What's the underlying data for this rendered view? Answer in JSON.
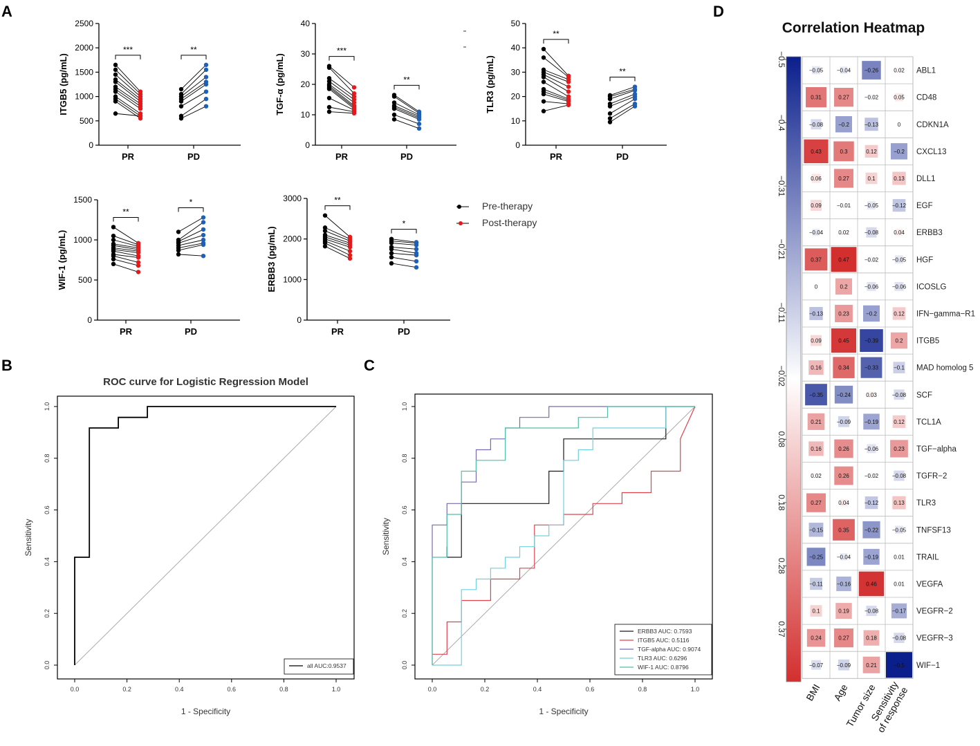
{
  "panel_labels": {
    "a": "A",
    "b": "B",
    "c": "C",
    "d": "D"
  },
  "legend": {
    "pre": {
      "label": "Pre-therapy",
      "color": "#000000"
    },
    "post": {
      "label": "Post-therapy",
      "color": "#e31a1c"
    },
    "pd_post_color": "#1f5fb4"
  },
  "chart_data": [
    {
      "id": "itgb5",
      "type": "paired-dot",
      "title": "",
      "ylabel": "ITGB5 (pg/mL)",
      "ylim": [
        0,
        2500
      ],
      "yticks": [
        0,
        500,
        1000,
        1500,
        2000,
        2500
      ],
      "groups": [
        {
          "name": "PR",
          "sig": "***",
          "pre": [
            1650,
            1550,
            1450,
            1350,
            1300,
            1200,
            1150,
            1100,
            1000,
            950,
            900,
            650
          ],
          "post": [
            1100,
            1050,
            1000,
            950,
            900,
            850,
            800,
            750,
            650,
            600,
            550,
            600
          ]
        },
        {
          "name": "PD",
          "sig": "**",
          "pre": [
            1150,
            1050,
            1000,
            950,
            900,
            800,
            600,
            550
          ],
          "post": [
            1650,
            1550,
            1400,
            1300,
            1250,
            1100,
            950,
            800
          ]
        }
      ]
    },
    {
      "id": "tgfa",
      "type": "paired-dot",
      "title": "",
      "ylabel": "TGF-α (pg/mL)",
      "ylim": [
        0,
        40
      ],
      "yticks": [
        0,
        10,
        20,
        30,
        40
      ],
      "groups": [
        {
          "name": "PR",
          "sig": "***",
          "pre": [
            26,
            25.5,
            22,
            21,
            20,
            19.5,
            19,
            18.5,
            15.5,
            12.5,
            11
          ],
          "post": [
            19,
            17,
            16,
            15,
            14,
            13,
            12.5,
            12,
            11.5,
            11,
            10.5
          ]
        },
        {
          "name": "PD",
          "sig": "**",
          "pre": [
            16.5,
            16,
            14,
            13,
            12.5,
            12,
            10,
            8.5
          ],
          "post": [
            11,
            10.5,
            10,
            9.5,
            9,
            8.5,
            7,
            5.5
          ]
        }
      ]
    },
    {
      "id": "tlr3",
      "type": "paired-dot",
      "title": "",
      "ylabel": "TLR3 (pg/mL)",
      "ylim": [
        0,
        50
      ],
      "yticks": [
        0,
        10,
        20,
        30,
        40,
        50
      ],
      "groups": [
        {
          "name": "PR",
          "sig": "**",
          "pre": [
            39.5,
            36,
            31,
            30,
            29,
            28,
            26,
            23,
            22,
            21,
            18,
            14
          ],
          "post": [
            28.5,
            28,
            27,
            26,
            24,
            22,
            20,
            19,
            18.5,
            18,
            17,
            16.5
          ]
        },
        {
          "name": "PD",
          "sig": "**",
          "pre": [
            20.5,
            20,
            19,
            17,
            16,
            13,
            11,
            9.5
          ],
          "post": [
            24,
            23,
            22.5,
            21,
            20,
            19,
            17,
            16
          ]
        }
      ]
    },
    {
      "id": "wif1",
      "type": "paired-dot",
      "title": "",
      "ylabel": "WIF-1 (pg/mL)",
      "ylim": [
        0,
        1500
      ],
      "yticks": [
        0,
        500,
        1000,
        1500
      ],
      "groups": [
        {
          "name": "PR",
          "sig": "**",
          "pre": [
            1160,
            1050,
            1000,
            950,
            930,
            900,
            880,
            860,
            820,
            800,
            760,
            700
          ],
          "post": [
            960,
            940,
            920,
            900,
            880,
            860,
            840,
            800,
            780,
            720,
            680,
            600
          ]
        },
        {
          "name": "PD",
          "sig": "*",
          "pre": [
            1100,
            1000,
            980,
            960,
            930,
            900,
            870,
            820
          ],
          "post": [
            1280,
            1220,
            1130,
            1060,
            1000,
            960,
            940,
            800
          ]
        }
      ]
    },
    {
      "id": "erbb3",
      "type": "paired-dot",
      "title": "",
      "ylabel": "ERBB3 (pg/mL)",
      "ylim": [
        0,
        3000
      ],
      "yticks": [
        0,
        1000,
        2000,
        3000
      ],
      "groups": [
        {
          "name": "PR",
          "sig": "**",
          "pre": [
            2580,
            2280,
            2200,
            2100,
            2050,
            2000,
            1950,
            1900,
            1820
          ],
          "post": [
            2050,
            2000,
            1950,
            1900,
            1850,
            1800,
            1700,
            1600,
            1520
          ]
        },
        {
          "name": "PD",
          "sig": "*",
          "pre": [
            2000,
            1950,
            1900,
            1800,
            1750,
            1650,
            1550,
            1400
          ],
          "post": [
            1920,
            1900,
            1850,
            1750,
            1650,
            1600,
            1450,
            1300
          ]
        }
      ]
    },
    {
      "id": "rocB",
      "type": "line",
      "title": "ROC curve for Logistic Regression Model",
      "xlabel": "1 - Specificity",
      "ylabel": "Sensitivity",
      "xlim": [
        0,
        1
      ],
      "ylim": [
        0,
        1
      ],
      "ticks": [
        "0.0",
        "0.2",
        "0.4",
        "0.6",
        "0.8",
        "1.0"
      ],
      "series": [
        {
          "name": "all",
          "auc_label": "all AUC:0.9537",
          "color": "#000000",
          "x": [
            0,
            0,
            0.056,
            0.056,
            0.167,
            0.167,
            0.278,
            0.278,
            1
          ],
          "y": [
            0,
            0.417,
            0.417,
            0.917,
            0.917,
            0.958,
            0.958,
            1,
            1
          ]
        }
      ]
    },
    {
      "id": "rocC",
      "type": "line",
      "title": "",
      "xlabel": "1 - Specificity",
      "ylabel": "Sensitivity",
      "xlim": [
        0,
        1
      ],
      "ylim": [
        0,
        1
      ],
      "ticks": [
        "0.0",
        "0.2",
        "0.4",
        "0.6",
        "0.8",
        "1.0"
      ],
      "series": [
        {
          "name": "ERBB3",
          "label": "ERBB3 AUC: 0.7593",
          "color": "#1a1a1a",
          "x": [
            0.056,
            0.056,
            0.111,
            0.111,
            0.444,
            0.444,
            0.5,
            0.5,
            0.889,
            0.889
          ],
          "y": [
            0.458,
            0.417,
            0.417,
            0.625,
            0.625,
            0.75,
            0.75,
            0.875,
            0.875,
            1
          ]
        },
        {
          "name": "ITGB5",
          "label": "ITGB5 AUC: 0.5116",
          "color": "#e0424e",
          "x": [
            0,
            0.056,
            0.056,
            0.111,
            0.111,
            0.222,
            0.222,
            0.333,
            0.333,
            0.389,
            0.389,
            0.5,
            0.5,
            0.611,
            0.611,
            0.722,
            0.722,
            0.833,
            0.833,
            0.944,
            0.944,
            1
          ],
          "y": [
            0.042,
            0.042,
            0.167,
            0.167,
            0.25,
            0.25,
            0.333,
            0.333,
            0.375,
            0.375,
            0.542,
            0.542,
            0.583,
            0.583,
            0.625,
            0.625,
            0.667,
            0.667,
            0.75,
            0.75,
            0.875,
            1
          ]
        },
        {
          "name": "TGF-alpha",
          "label": "TGF-alpha AUC: 0.9074",
          "color": "#7b68b0",
          "x": [
            0,
            0,
            0.056,
            0.056,
            0.111,
            0.111,
            0.167,
            0.167,
            0.222,
            0.222,
            0.278,
            0.278,
            0.333,
            0.333,
            0.444,
            0.444,
            0.667,
            0.667,
            1
          ],
          "y": [
            0,
            0.542,
            0.542,
            0.625,
            0.625,
            0.708,
            0.708,
            0.833,
            0.833,
            0.875,
            0.875,
            0.917,
            0.917,
            0.958,
            0.958,
            1,
            1,
            1,
            1
          ]
        },
        {
          "name": "TLR3",
          "label": "TLR3 AUC: 0.6296",
          "color": "#6fd0de",
          "x": [
            0,
            0.111,
            0.111,
            0.167,
            0.167,
            0.222,
            0.222,
            0.278,
            0.278,
            0.333,
            0.333,
            0.389,
            0.389,
            0.444,
            0.444,
            0.5,
            0.5,
            0.556,
            0.556,
            0.611,
            0.611,
            0.889,
            0.889,
            1
          ],
          "y": [
            0,
            0,
            0.292,
            0.292,
            0.333,
            0.333,
            0.375,
            0.375,
            0.417,
            0.417,
            0.458,
            0.458,
            0.5,
            0.5,
            0.542,
            0.542,
            0.792,
            0.792,
            0.833,
            0.833,
            0.917,
            0.917,
            1,
            1
          ]
        },
        {
          "name": "WIF-1",
          "label": "WIF-1 AUC: 0.8796",
          "color": "#4fbfa8",
          "x": [
            0,
            0,
            0.056,
            0.056,
            0.111,
            0.111,
            0.167,
            0.167,
            0.278,
            0.278,
            0.5,
            0.5,
            0.556,
            0.556,
            0.611,
            0.611,
            0.667,
            0.667,
            1
          ],
          "y": [
            0,
            0.417,
            0.417,
            0.583,
            0.583,
            0.75,
            0.75,
            0.792,
            0.792,
            0.917,
            0.917,
            0.917,
            0.917,
            0.958,
            0.958,
            0.958,
            0.958,
            1,
            1
          ]
        }
      ]
    },
    {
      "id": "heatmap",
      "type": "heatmap",
      "title": "Correlation Heatmap",
      "columns": [
        "BMI",
        "Age",
        "Tumor size",
        "Sensitivity\nof response"
      ],
      "rows": [
        "ABL1",
        "CD48",
        "CDKN1A",
        "CXCL13",
        "DLL1",
        "EGF",
        "ERBB3",
        "HGF",
        "ICOSLG",
        "IFN−gamma−R1",
        "ITGB5",
        "MAD homolog 5",
        "SCF",
        "TCL1A",
        "TGF−alpha",
        "TGFR−2",
        "TLR3",
        "TNFSF13",
        "TRAIL",
        "VEGFA",
        "VEGFR−2",
        "VEGFR−3",
        "WIF−1"
      ],
      "values": [
        [
          -0.05,
          -0.04,
          -0.26,
          0.02
        ],
        [
          0.31,
          0.27,
          -0.02,
          0.05
        ],
        [
          -0.08,
          -0.2,
          -0.13,
          0
        ],
        [
          0.43,
          0.3,
          0.12,
          -0.2
        ],
        [
          0.06,
          0.27,
          0.1,
          0.13
        ],
        [
          0.09,
          -0.01,
          -0.05,
          -0.12
        ],
        [
          -0.04,
          0.02,
          -0.08,
          0.04
        ],
        [
          0.37,
          0.47,
          -0.02,
          -0.05
        ],
        [
          0,
          0.2,
          -0.06,
          -0.06
        ],
        [
          -0.13,
          0.23,
          -0.2,
          0.12
        ],
        [
          0.09,
          0.45,
          -0.39,
          0.2
        ],
        [
          0.16,
          0.34,
          -0.33,
          -0.1
        ],
        [
          -0.35,
          -0.24,
          0.03,
          -0.08
        ],
        [
          0.21,
          -0.09,
          -0.19,
          0.12
        ],
        [
          0.16,
          0.26,
          -0.06,
          0.23
        ],
        [
          0.02,
          0.26,
          -0.02,
          -0.08
        ],
        [
          0.27,
          0.04,
          -0.12,
          0.13
        ],
        [
          -0.15,
          0.35,
          -0.22,
          -0.05
        ],
        [
          -0.25,
          -0.04,
          -0.19,
          0.01
        ],
        [
          -0.11,
          -0.16,
          0.46,
          0.01
        ],
        [
          0.1,
          0.19,
          -0.08,
          -0.17
        ],
        [
          0.24,
          0.27,
          0.18,
          -0.08
        ],
        [
          -0.07,
          -0.09,
          0.21,
          -0.5
        ]
      ],
      "colorbar_ticks": [
        "−0.5",
        "−0.4",
        "−0.31",
        "−0.21",
        "−0.11",
        "−0.02",
        "0.08",
        "0.18",
        "0.28",
        "0.37"
      ],
      "colorbar_range": [
        -0.5,
        0.47
      ],
      "colors": {
        "neg": "#0b1f8c",
        "mid": "#ffffff",
        "pos": "#d32f2f"
      }
    }
  ]
}
